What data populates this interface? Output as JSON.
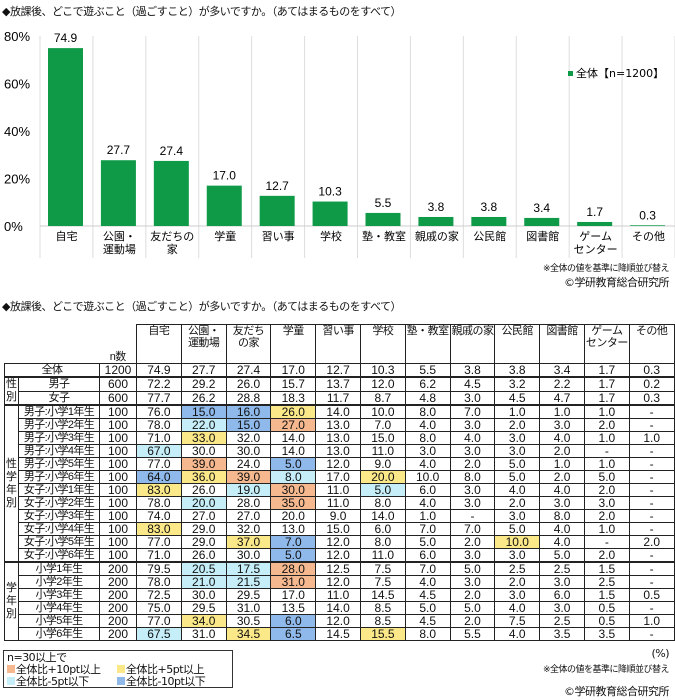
{
  "question": "◆放課後、どこで遊ぶこと（過ごすこと）が多いですか。（あてはまるものをすべて）",
  "chart_data": {
    "type": "bar",
    "categories": [
      "自宅",
      "公園・\n運動場",
      "友だちの\n家",
      "学童",
      "習い事",
      "学校",
      "塾・教室",
      "親戚の家",
      "公民館",
      "図書館",
      "ゲーム\nセンター",
      "その他"
    ],
    "series": [
      {
        "name": "全体【n=1200】",
        "values": [
          74.9,
          27.7,
          27.4,
          17.0,
          12.7,
          10.3,
          5.5,
          3.8,
          3.8,
          3.4,
          1.7,
          0.3
        ]
      }
    ],
    "yticks": [
      "0%",
      "20%",
      "40%",
      "60%",
      "80%"
    ],
    "ylim": [
      0,
      80
    ],
    "legend": "right",
    "color": "#0f9a48",
    "grid": "vertical"
  },
  "notes": {
    "sort": "※全体の値を基準に降順並び替え",
    "copyright": "©学研教育総合研究所",
    "unit": "(%)"
  },
  "table": {
    "n_header": "n数",
    "headers": [
      "自宅",
      "公園・\n運動場",
      "友だち\nの家",
      "学童",
      "習い事",
      "学校",
      "塾・教室",
      "親戚の家",
      "公民館",
      "図書館",
      "ゲーム\nセンター",
      "その他"
    ],
    "sections": {
      "gender": "性\n別",
      "gender_grade": "性\n学\n年\n別",
      "grade": "学\n年\n別"
    },
    "rows": [
      {
        "label": "全体",
        "n": "1200",
        "v": [
          "74.9",
          "27.7",
          "27.4",
          "17.0",
          "12.7",
          "10.3",
          "5.5",
          "3.8",
          "3.8",
          "3.4",
          "1.7",
          "0.3"
        ],
        "h": ""
      },
      {
        "label": "男子",
        "n": "600",
        "v": [
          "72.2",
          "29.2",
          "26.0",
          "15.7",
          "13.7",
          "12.0",
          "6.2",
          "4.5",
          "3.2",
          "2.2",
          "1.7",
          "0.2"
        ],
        "h": ""
      },
      {
        "label": "女子",
        "n": "600",
        "v": [
          "77.7",
          "26.2",
          "28.8",
          "18.3",
          "11.7",
          "8.7",
          "4.8",
          "3.0",
          "4.5",
          "4.7",
          "1.7",
          "0.3"
        ],
        "h": ""
      },
      {
        "label": "男子:小学1年生",
        "n": "100",
        "v": [
          "76.0",
          "15.0",
          "16.0",
          "26.0",
          "14.0",
          "10.0",
          "8.0",
          "7.0",
          "1.0",
          "1.0",
          "1.0",
          "-"
        ],
        "h": ".bby........"
      },
      {
        "label": "男子:小学2年生",
        "n": "100",
        "v": [
          "78.0",
          "22.0",
          "15.0",
          "27.0",
          "13.0",
          "7.0",
          "4.0",
          "3.0",
          "2.0",
          "3.0",
          "2.0",
          "-"
        ],
        "h": ".cbo........"
      },
      {
        "label": "男子:小学3年生",
        "n": "100",
        "v": [
          "71.0",
          "33.0",
          "32.0",
          "14.0",
          "13.0",
          "15.0",
          "8.0",
          "4.0",
          "3.0",
          "4.0",
          "1.0",
          "1.0"
        ],
        "h": ".y.........."
      },
      {
        "label": "男子:小学4年生",
        "n": "100",
        "v": [
          "67.0",
          "30.0",
          "30.0",
          "14.0",
          "13.0",
          "11.0",
          "3.0",
          "3.0",
          "3.0",
          "2.0",
          "-",
          "-"
        ],
        "h": "c..........."
      },
      {
        "label": "男子:小学5年生",
        "n": "100",
        "v": [
          "77.0",
          "39.0",
          "24.0",
          "5.0",
          "12.0",
          "9.0",
          "4.0",
          "2.0",
          "5.0",
          "1.0",
          "1.0",
          "-"
        ],
        "h": ".o.b........"
      },
      {
        "label": "男子:小学6年生",
        "n": "100",
        "v": [
          "64.0",
          "36.0",
          "39.0",
          "8.0",
          "17.0",
          "20.0",
          "10.0",
          "8.0",
          "5.0",
          "2.0",
          "5.0",
          "-"
        ],
        "h": "byoc.y......"
      },
      {
        "label": "女子:小学1年生",
        "n": "100",
        "v": [
          "83.0",
          "26.0",
          "19.0",
          "30.0",
          "11.0",
          "5.0",
          "6.0",
          "3.0",
          "4.0",
          "4.0",
          "2.0",
          "-"
        ],
        "h": "y.co.c......"
      },
      {
        "label": "女子:小学2年生",
        "n": "100",
        "v": [
          "78.0",
          "20.0",
          "28.0",
          "35.0",
          "11.0",
          "8.0",
          "4.0",
          "3.0",
          "2.0",
          "3.0",
          "3.0",
          "-"
        ],
        "h": ".c.o........"
      },
      {
        "label": "女子:小学3年生",
        "n": "100",
        "v": [
          "74.0",
          "27.0",
          "27.0",
          "20.0",
          "9.0",
          "14.0",
          "1.0",
          "-",
          "3.0",
          "8.0",
          "2.0",
          "-"
        ],
        "h": ""
      },
      {
        "label": "女子:小学4年生",
        "n": "100",
        "v": [
          "83.0",
          "29.0",
          "32.0",
          "13.0",
          "15.0",
          "6.0",
          "7.0",
          "7.0",
          "5.0",
          "4.0",
          "1.0",
          "-"
        ],
        "h": "y..........."
      },
      {
        "label": "女子:小学5年生",
        "n": "100",
        "v": [
          "77.0",
          "29.0",
          "37.0",
          "7.0",
          "12.0",
          "8.0",
          "5.0",
          "2.0",
          "10.0",
          "4.0",
          "-",
          "2.0"
        ],
        "h": "..yb....y..."
      },
      {
        "label": "女子:小学6年生",
        "n": "100",
        "v": [
          "71.0",
          "26.0",
          "30.0",
          "5.0",
          "12.0",
          "11.0",
          "6.0",
          "3.0",
          "3.0",
          "5.0",
          "2.0",
          "-"
        ],
        "h": "...b........"
      },
      {
        "label": "小学1年生",
        "n": "200",
        "v": [
          "79.5",
          "20.5",
          "17.5",
          "28.0",
          "12.5",
          "7.5",
          "7.0",
          "5.0",
          "2.5",
          "2.5",
          "1.5",
          "-"
        ],
        "h": ".cco........"
      },
      {
        "label": "小学2年生",
        "n": "200",
        "v": [
          "78.0",
          "21.0",
          "21.5",
          "31.0",
          "12.0",
          "7.5",
          "4.0",
          "3.0",
          "2.0",
          "3.0",
          "2.5",
          "-"
        ],
        "h": ".cco........"
      },
      {
        "label": "小学3年生",
        "n": "200",
        "v": [
          "72.5",
          "30.0",
          "29.5",
          "17.0",
          "11.0",
          "14.5",
          "4.5",
          "2.0",
          "3.0",
          "6.0",
          "1.5",
          "0.5"
        ],
        "h": ""
      },
      {
        "label": "小学4年生",
        "n": "200",
        "v": [
          "75.0",
          "29.5",
          "31.0",
          "13.5",
          "14.0",
          "8.5",
          "5.0",
          "5.0",
          "4.0",
          "3.0",
          "0.5",
          "-"
        ],
        "h": ""
      },
      {
        "label": "小学5年生",
        "n": "200",
        "v": [
          "77.0",
          "34.0",
          "30.5",
          "6.0",
          "12.0",
          "8.5",
          "4.5",
          "2.0",
          "7.5",
          "2.5",
          "0.5",
          "1.0"
        ],
        "h": ".y.b........"
      },
      {
        "label": "小学6年生",
        "n": "200",
        "v": [
          "67.5",
          "31.0",
          "34.5",
          "6.5",
          "14.5",
          "15.5",
          "8.0",
          "5.5",
          "4.0",
          "3.5",
          "3.5",
          "-"
        ],
        "h": "c.yb.y......"
      }
    ]
  },
  "legend": {
    "title": "n=30以上で",
    "items": [
      {
        "label": "全体比+10pt以上",
        "color": "#f6b98f"
      },
      {
        "label": "全体比+5pt以上",
        "color": "#fbe889"
      },
      {
        "label": "全体比-5pt以下",
        "color": "#c6eef8"
      },
      {
        "label": "全体比-10pt以下",
        "color": "#8fb9ea"
      }
    ]
  }
}
